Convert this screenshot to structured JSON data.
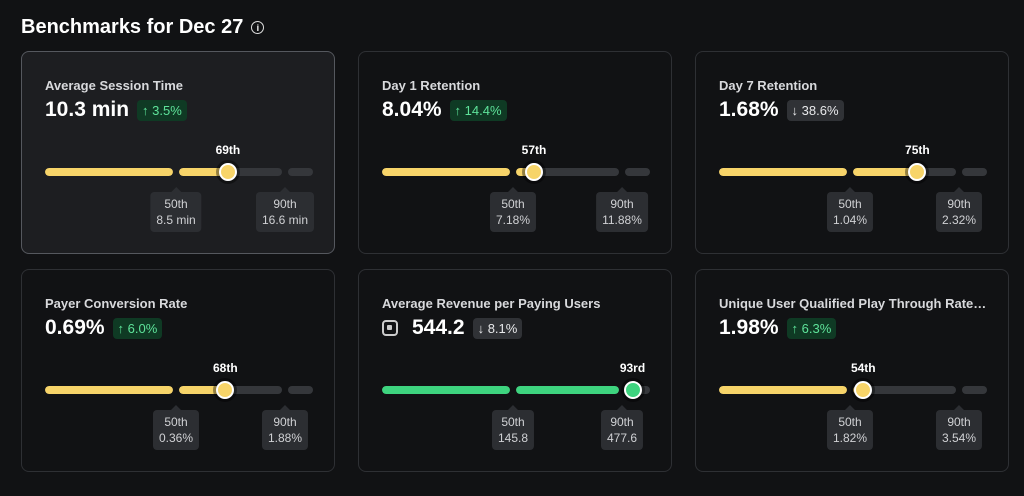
{
  "header": {
    "title": "Benchmarks for Dec 27",
    "info_icon": "info-icon"
  },
  "colors": {
    "yellow": "#f7d469",
    "green": "#3ed47f"
  },
  "cards": [
    {
      "label": "Average Session Time",
      "value": "10.3 min",
      "change": "3.5%",
      "direction": "up",
      "percentile": 69,
      "percentile_label": "69th",
      "p50_label": "50th",
      "p50": "8.5 min",
      "p90_label": "90th",
      "p90": "16.6 min",
      "color": "yellow",
      "selected": true
    },
    {
      "label": "Day 1 Retention",
      "value": "8.04%",
      "change": "14.4%",
      "direction": "up",
      "percentile": 57,
      "percentile_label": "57th",
      "p50_label": "50th",
      "p50": "7.18%",
      "p90_label": "90th",
      "p90": "11.88%",
      "color": "yellow"
    },
    {
      "label": "Day 7 Retention",
      "value": "1.68%",
      "change": "38.6%",
      "direction": "down",
      "percentile": 75,
      "percentile_label": "75th",
      "p50_label": "50th",
      "p50": "1.04%",
      "p90_label": "90th",
      "p90": "2.32%",
      "color": "yellow"
    },
    {
      "label": "Payer Conversion Rate",
      "value": "0.69%",
      "change": "6.0%",
      "direction": "up",
      "percentile": 68,
      "percentile_label": "68th",
      "p50_label": "50th",
      "p50": "0.36%",
      "p90_label": "90th",
      "p90": "1.88%",
      "color": "yellow"
    },
    {
      "label": "Average Revenue per Paying Users",
      "value": "544.2",
      "currency_icon": "robux-icon",
      "change": "8.1%",
      "direction": "down",
      "percentile": 93,
      "percentile_label": "93rd",
      "p50_label": "50th",
      "p50": "145.8",
      "p90_label": "90th",
      "p90": "477.6",
      "color": "green"
    },
    {
      "label": "Unique User Qualified Play Through Rate (Q...",
      "value": "1.98%",
      "change": "6.3%",
      "direction": "up",
      "percentile": 54,
      "percentile_label": "54th",
      "p50_label": "50th",
      "p50": "1.82%",
      "p90_label": "90th",
      "p90": "3.54%",
      "color": "yellow"
    }
  ]
}
